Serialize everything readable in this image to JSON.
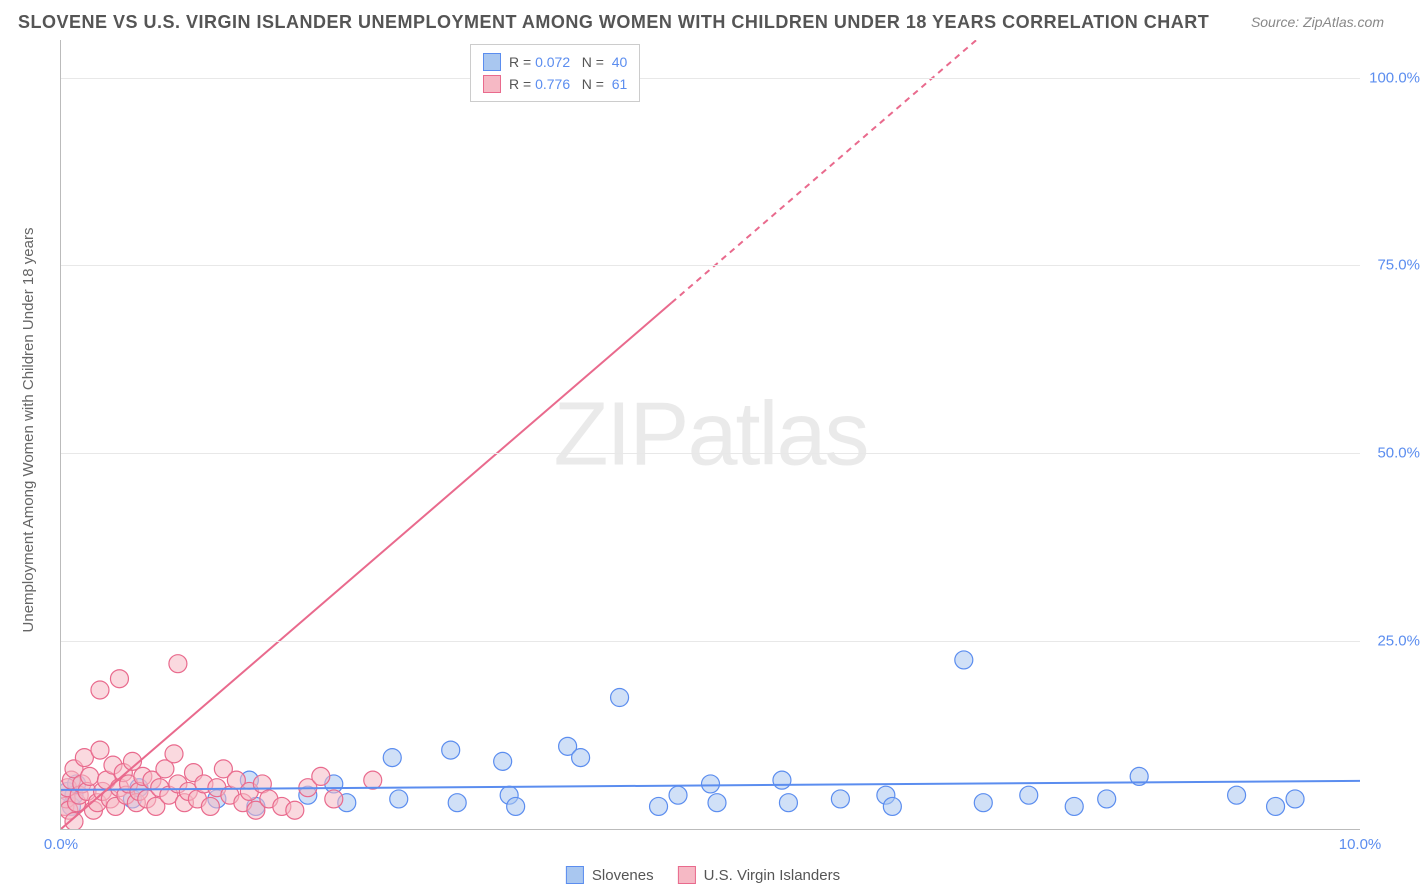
{
  "title": "SLOVENE VS U.S. VIRGIN ISLANDER UNEMPLOYMENT AMONG WOMEN WITH CHILDREN UNDER 18 YEARS CORRELATION CHART",
  "source": "Source: ZipAtlas.com",
  "watermark": "ZIPatlas",
  "y_axis_title": "Unemployment Among Women with Children Under 18 years",
  "chart": {
    "type": "scatter",
    "xlim": [
      0,
      10
    ],
    "ylim": [
      0,
      105
    ],
    "x_ticks": [
      {
        "v": 0,
        "label": "0.0%"
      },
      {
        "v": 10,
        "label": "10.0%"
      }
    ],
    "y_ticks": [
      {
        "v": 25,
        "label": "25.0%"
      },
      {
        "v": 50,
        "label": "50.0%"
      },
      {
        "v": 75,
        "label": "75.0%"
      },
      {
        "v": 100,
        "label": "100.0%"
      }
    ],
    "grid_color": "#e8e8e8",
    "axis_color": "#bbbbbb",
    "background_color": "#ffffff",
    "tick_label_color": "#5b8def",
    "tick_label_fontsize": 15,
    "marker_radius": 9,
    "marker_stroke_width": 1.2,
    "line_width": 2,
    "series": [
      {
        "name": "Slovenes",
        "fill_color": "#a9c7f0",
        "stroke_color": "#5b8def",
        "fill_opacity": 0.55,
        "R": "0.072",
        "N": "40",
        "trend": {
          "x1": 0,
          "y1": 5.2,
          "x2": 10,
          "y2": 6.4,
          "dash": "none",
          "dash_after_x": null
        },
        "points": [
          [
            0.05,
            5.0
          ],
          [
            0.08,
            3.0
          ],
          [
            0.1,
            4.5
          ],
          [
            0.12,
            6.0
          ],
          [
            0.55,
            4.0
          ],
          [
            0.6,
            5.5
          ],
          [
            1.2,
            4.0
          ],
          [
            1.45,
            6.5
          ],
          [
            1.5,
            3.0
          ],
          [
            1.9,
            4.5
          ],
          [
            2.1,
            6.0
          ],
          [
            2.2,
            3.5
          ],
          [
            2.55,
            9.5
          ],
          [
            2.6,
            4.0
          ],
          [
            3.0,
            10.5
          ],
          [
            3.05,
            3.5
          ],
          [
            3.4,
            9.0
          ],
          [
            3.45,
            4.5
          ],
          [
            3.5,
            3.0
          ],
          [
            3.9,
            11.0
          ],
          [
            4.0,
            9.5
          ],
          [
            4.3,
            17.5
          ],
          [
            4.6,
            3.0
          ],
          [
            4.75,
            4.5
          ],
          [
            5.0,
            6.0
          ],
          [
            5.05,
            3.5
          ],
          [
            5.55,
            6.5
          ],
          [
            5.6,
            3.5
          ],
          [
            6.0,
            4.0
          ],
          [
            6.35,
            4.5
          ],
          [
            6.4,
            3.0
          ],
          [
            6.95,
            22.5
          ],
          [
            7.1,
            3.5
          ],
          [
            7.45,
            4.5
          ],
          [
            7.8,
            3.0
          ],
          [
            8.05,
            4.0
          ],
          [
            8.3,
            7.0
          ],
          [
            9.05,
            4.5
          ],
          [
            9.35,
            3.0
          ],
          [
            9.5,
            4.0
          ]
        ]
      },
      {
        "name": "U.S. Virgin Islanders",
        "fill_color": "#f6b9c5",
        "stroke_color": "#e96a8d",
        "fill_opacity": 0.55,
        "R": "0.776",
        "N": "61",
        "trend": {
          "x1": 0,
          "y1": 0,
          "x2": 10,
          "y2": 149,
          "dash": "6,5",
          "dash_after_x": 4.7
        },
        "points": [
          [
            0.03,
            3.0
          ],
          [
            0.04,
            4.0
          ],
          [
            0.05,
            5.5
          ],
          [
            0.06,
            2.5
          ],
          [
            0.08,
            6.5
          ],
          [
            0.1,
            8.0
          ],
          [
            0.12,
            3.5
          ],
          [
            0.14,
            4.5
          ],
          [
            0.16,
            6.0
          ],
          [
            0.18,
            9.5
          ],
          [
            0.2,
            5.0
          ],
          [
            0.22,
            7.0
          ],
          [
            0.25,
            2.5
          ],
          [
            0.28,
            3.5
          ],
          [
            0.3,
            10.5
          ],
          [
            0.32,
            5.0
          ],
          [
            0.35,
            6.5
          ],
          [
            0.38,
            4.0
          ],
          [
            0.4,
            8.5
          ],
          [
            0.42,
            3.0
          ],
          [
            0.45,
            5.5
          ],
          [
            0.48,
            7.5
          ],
          [
            0.5,
            4.5
          ],
          [
            0.52,
            6.0
          ],
          [
            0.55,
            9.0
          ],
          [
            0.58,
            3.5
          ],
          [
            0.6,
            5.0
          ],
          [
            0.63,
            7.0
          ],
          [
            0.66,
            4.0
          ],
          [
            0.7,
            6.5
          ],
          [
            0.73,
            3.0
          ],
          [
            0.76,
            5.5
          ],
          [
            0.8,
            8.0
          ],
          [
            0.83,
            4.5
          ],
          [
            0.87,
            10.0
          ],
          [
            0.9,
            6.0
          ],
          [
            0.3,
            18.5
          ],
          [
            0.45,
            20.0
          ],
          [
            0.95,
            3.5
          ],
          [
            0.98,
            5.0
          ],
          [
            1.02,
            7.5
          ],
          [
            1.05,
            4.0
          ],
          [
            1.1,
            6.0
          ],
          [
            1.15,
            3.0
          ],
          [
            1.2,
            5.5
          ],
          [
            1.25,
            8.0
          ],
          [
            0.1,
            1.0
          ],
          [
            1.3,
            4.5
          ],
          [
            1.35,
            6.5
          ],
          [
            1.4,
            3.5
          ],
          [
            1.45,
            5.0
          ],
          [
            1.5,
            2.5
          ],
          [
            1.55,
            6.0
          ],
          [
            1.6,
            4.0
          ],
          [
            1.7,
            3.0
          ],
          [
            1.8,
            2.5
          ],
          [
            1.9,
            5.5
          ],
          [
            2.0,
            7.0
          ],
          [
            2.1,
            4.0
          ],
          [
            2.4,
            6.5
          ],
          [
            0.9,
            22.0
          ]
        ]
      }
    ]
  },
  "legend_stats": {
    "rows": [
      {
        "swatch_fill": "#a9c7f0",
        "swatch_stroke": "#5b8def",
        "r_label": "R =",
        "r_value": "0.072",
        "n_label": "N =",
        "n_value": "40"
      },
      {
        "swatch_fill": "#f6b9c5",
        "swatch_stroke": "#e96a8d",
        "r_label": "R =",
        "r_value": "0.776",
        "n_label": "N =",
        "n_value": "61"
      }
    ]
  },
  "legend_bottom": [
    {
      "swatch_fill": "#a9c7f0",
      "swatch_stroke": "#5b8def",
      "label": "Slovenes"
    },
    {
      "swatch_fill": "#f6b9c5",
      "swatch_stroke": "#e96a8d",
      "label": "U.S. Virgin Islanders"
    }
  ]
}
